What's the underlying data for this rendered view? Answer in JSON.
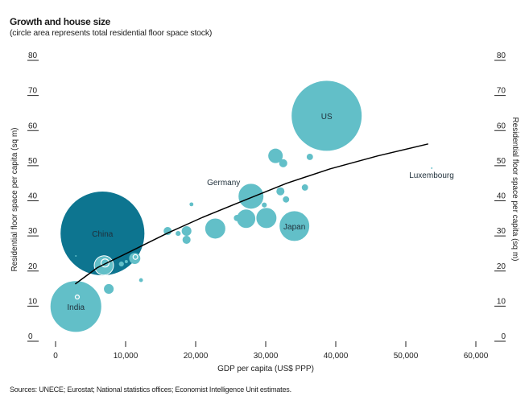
{
  "title": "Growth and house size",
  "subtitle": "(circle area represents total residential floor space stock)",
  "source": "Sources: UNECE; Eurostat; National statistics offices; Economist Intelligence Unit estimates.",
  "colors": {
    "light_bubble": "#62bfc8",
    "dark_bubble": "#0d7590",
    "trend_line": "#000000",
    "ring": "#ffffff"
  },
  "chart_data": {
    "type": "scatter",
    "subtype": "bubble",
    "title": "Growth and house size",
    "subtitle": "(circle area represents total residential floor space stock)",
    "xlabel": "GDP per capita (US$ PPP)",
    "ylabel": "Residential floor space per capita (sq m)",
    "ylabel_right": "Residential floor space per capita (sq m)",
    "xlim": [
      0,
      60000
    ],
    "ylim": [
      0,
      80
    ],
    "x_ticks": [
      0,
      10000,
      20000,
      30000,
      40000,
      50000,
      60000
    ],
    "x_tick_labels": [
      "0",
      "10,000",
      "20,000",
      "30,000",
      "40,000",
      "50,000",
      "60,000"
    ],
    "y_ticks": [
      0,
      10,
      20,
      30,
      40,
      50,
      60,
      70,
      80
    ],
    "y_tick_labels": [
      "0",
      "10",
      "20",
      "30",
      "40",
      "50",
      "60",
      "70",
      "80"
    ],
    "grid": false,
    "legend": "none",
    "points": [
      {
        "label": "China",
        "x": 6700,
        "y": 30.7,
        "relative_area": 1.4,
        "color": "dark"
      },
      {
        "label": "India",
        "x": 2900,
        "y": 9.9,
        "relative_area": 0.53,
        "color": "light"
      },
      {
        "label": "US",
        "x": 38700,
        "y": 64.2,
        "relative_area": 1.0,
        "color": "light"
      },
      {
        "label": "Japan",
        "x": 34100,
        "y": 32.8,
        "relative_area": 0.186,
        "color": "light"
      },
      {
        "label": "Germany",
        "x": 27900,
        "y": 41.3,
        "relative_area": 0.132,
        "color": "light",
        "label_offset": "above-left"
      },
      {
        "label": "Luxembourg",
        "x": 53700,
        "y": 49.3,
        "relative_area": 0.0005,
        "color": "light",
        "label_offset": "below"
      },
      {
        "label": "",
        "x": 27200,
        "y": 34.9,
        "relative_area": 0.074,
        "color": "light"
      },
      {
        "label": "",
        "x": 30100,
        "y": 35.1,
        "relative_area": 0.087,
        "color": "light"
      },
      {
        "label": "",
        "x": 25900,
        "y": 35.1,
        "relative_area": 0.008,
        "color": "light"
      },
      {
        "label": "",
        "x": 22800,
        "y": 32.1,
        "relative_area": 0.087,
        "color": "light"
      },
      {
        "label": "",
        "x": 18700,
        "y": 31.4,
        "relative_area": 0.019,
        "color": "light"
      },
      {
        "label": "",
        "x": 18700,
        "y": 28.9,
        "relative_area": 0.013,
        "color": "light"
      },
      {
        "label": "",
        "x": 17500,
        "y": 30.7,
        "relative_area": 0.005,
        "color": "light"
      },
      {
        "label": "",
        "x": 16000,
        "y": 31.4,
        "relative_area": 0.013,
        "color": "light"
      },
      {
        "label": "",
        "x": 19400,
        "y": 39.0,
        "relative_area": 0.003,
        "color": "light"
      },
      {
        "label": "",
        "x": 31400,
        "y": 52.8,
        "relative_area": 0.042,
        "color": "light"
      },
      {
        "label": "",
        "x": 32500,
        "y": 50.7,
        "relative_area": 0.013,
        "color": "light"
      },
      {
        "label": "",
        "x": 36300,
        "y": 52.5,
        "relative_area": 0.008,
        "color": "light"
      },
      {
        "label": "",
        "x": 32100,
        "y": 42.7,
        "relative_area": 0.013,
        "color": "light"
      },
      {
        "label": "",
        "x": 32900,
        "y": 40.4,
        "relative_area": 0.008,
        "color": "light"
      },
      {
        "label": "",
        "x": 35600,
        "y": 43.8,
        "relative_area": 0.008,
        "color": "light"
      },
      {
        "label": "",
        "x": 29800,
        "y": 38.8,
        "relative_area": 0.005,
        "color": "light"
      },
      {
        "label": "",
        "x": 6900,
        "y": 21.6,
        "relative_area": 0.074,
        "color": "light",
        "ring": true
      },
      {
        "label": "",
        "x": 7600,
        "y": 14.9,
        "relative_area": 0.019,
        "color": "light"
      },
      {
        "label": "",
        "x": 11300,
        "y": 23.6,
        "relative_area": 0.025,
        "color": "light",
        "ring": true
      },
      {
        "label": "",
        "x": 9400,
        "y": 22.0,
        "relative_area": 0.005,
        "color": "light"
      },
      {
        "label": "",
        "x": 10100,
        "y": 22.7,
        "relative_area": 0.002,
        "color": "light"
      },
      {
        "label": "",
        "x": 12200,
        "y": 17.4,
        "relative_area": 0.003,
        "color": "light"
      },
      {
        "label": "",
        "x": 2900,
        "y": 24.3,
        "relative_area": 0.0005,
        "color": "light"
      },
      {
        "label": "",
        "x": 3100,
        "y": 12.6,
        "relative_area": 0.002,
        "color": "white-ring"
      }
    ],
    "trend_line": {
      "x": [
        2800,
        6000,
        10800,
        16000,
        21000,
        27500,
        33000,
        39200,
        46000,
        53200
      ],
      "y": [
        16.3,
        21.0,
        25.7,
        30.8,
        35.3,
        40.6,
        45.0,
        49.1,
        52.8,
        56.2
      ]
    }
  }
}
